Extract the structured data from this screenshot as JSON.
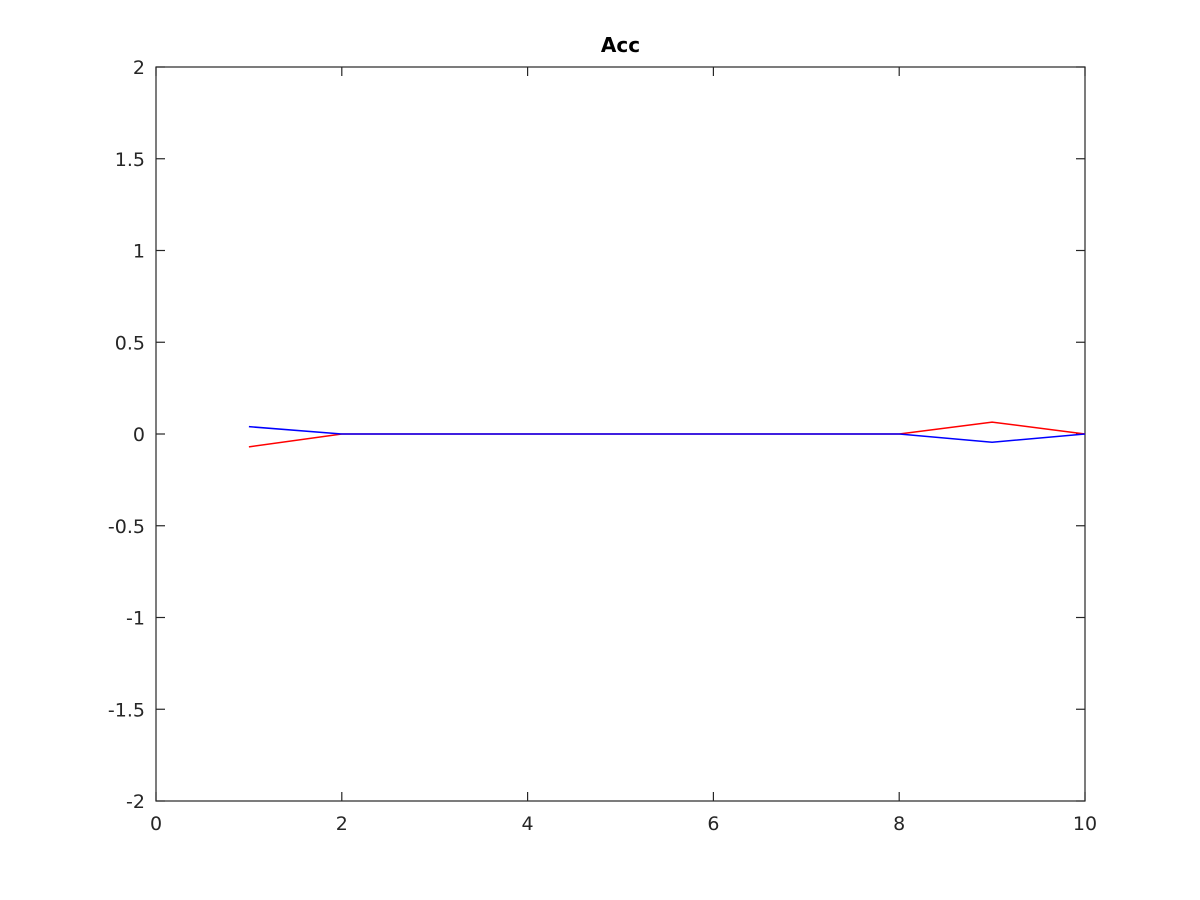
{
  "chart_data": {
    "type": "line",
    "title": "Acc",
    "xlabel": "",
    "ylabel": "",
    "xlim": [
      0,
      10
    ],
    "ylim": [
      -2,
      2
    ],
    "x_ticks": [
      0,
      2,
      4,
      6,
      8,
      10
    ],
    "x_tick_labels": [
      "0",
      "2",
      "4",
      "6",
      "8",
      "10"
    ],
    "y_ticks": [
      -2,
      -1.5,
      -1,
      -0.5,
      0,
      0.5,
      1,
      1.5,
      2
    ],
    "y_tick_labels": [
      "-2",
      "-1.5",
      "-1",
      "-0.5",
      "0",
      "0.5",
      "1",
      "1.5",
      "2"
    ],
    "grid": false,
    "legend": "none",
    "series": [
      {
        "color": "#ff0000",
        "x": [
          1,
          2,
          3,
          4,
          5,
          6,
          7,
          8,
          9,
          10
        ],
        "y": [
          -0.07,
          0,
          0,
          0,
          0,
          0,
          0,
          0,
          0.065,
          0
        ]
      },
      {
        "color": "#0000ff",
        "x": [
          1,
          2,
          3,
          4,
          5,
          6,
          7,
          8,
          9,
          10
        ],
        "y": [
          0.04,
          0,
          0,
          0,
          0,
          0,
          0,
          0,
          -0.045,
          0
        ]
      }
    ]
  }
}
